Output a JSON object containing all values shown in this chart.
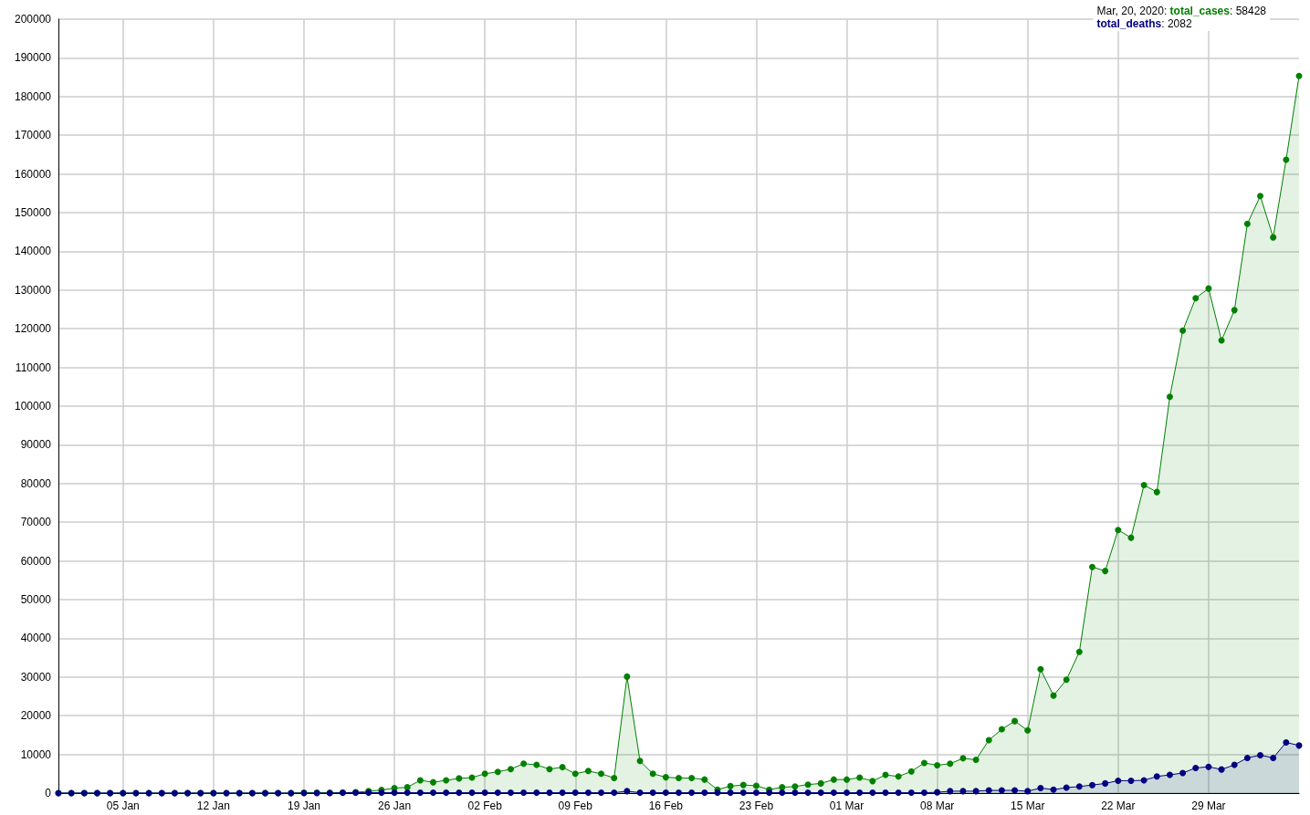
{
  "chart_data": {
    "type": "area",
    "x": [
      "2019-12-31",
      "2020-01-01",
      "2020-01-02",
      "2020-01-03",
      "2020-01-04",
      "2020-01-05",
      "2020-01-06",
      "2020-01-07",
      "2020-01-08",
      "2020-01-09",
      "2020-01-10",
      "2020-01-11",
      "2020-01-12",
      "2020-01-13",
      "2020-01-14",
      "2020-01-15",
      "2020-01-16",
      "2020-01-17",
      "2020-01-18",
      "2020-01-19",
      "2020-01-20",
      "2020-01-21",
      "2020-01-22",
      "2020-01-23",
      "2020-01-24",
      "2020-01-25",
      "2020-01-26",
      "2020-01-27",
      "2020-01-28",
      "2020-01-29",
      "2020-01-30",
      "2020-01-31",
      "2020-02-01",
      "2020-02-02",
      "2020-02-03",
      "2020-02-04",
      "2020-02-05",
      "2020-02-06",
      "2020-02-07",
      "2020-02-08",
      "2020-02-09",
      "2020-02-10",
      "2020-02-11",
      "2020-02-12",
      "2020-02-13",
      "2020-02-14",
      "2020-02-15",
      "2020-02-16",
      "2020-02-17",
      "2020-02-18",
      "2020-02-19",
      "2020-02-20",
      "2020-02-21",
      "2020-02-22",
      "2020-02-23",
      "2020-02-24",
      "2020-02-25",
      "2020-02-26",
      "2020-02-27",
      "2020-02-28",
      "2020-02-29",
      "2020-03-01",
      "2020-03-02",
      "2020-03-03",
      "2020-03-04",
      "2020-03-05",
      "2020-03-06",
      "2020-03-07",
      "2020-03-08",
      "2020-03-09",
      "2020-03-10",
      "2020-03-11",
      "2020-03-12",
      "2020-03-13",
      "2020-03-14",
      "2020-03-15",
      "2020-03-16",
      "2020-03-17",
      "2020-03-18",
      "2020-03-19",
      "2020-03-20",
      "2020-03-21",
      "2020-03-22",
      "2020-03-23",
      "2020-03-24",
      "2020-03-25",
      "2020-03-26",
      "2020-03-27",
      "2020-03-28",
      "2020-03-29",
      "2020-03-30",
      "2020-03-31",
      "2020-04-01",
      "2020-04-02",
      "2020-04-03",
      "2020-04-04",
      "2020-04-05"
    ],
    "series": [
      {
        "name": "total_cases",
        "color": "#008000",
        "values": [
          0,
          0,
          0,
          0,
          0,
          0,
          0,
          0,
          0,
          0,
          0,
          0,
          0,
          0,
          0,
          0,
          0,
          0,
          0,
          100,
          100,
          100,
          100,
          200,
          500,
          800,
          1300,
          1500,
          3300,
          2800,
          3300,
          3800,
          4000,
          5000,
          5500,
          6200,
          7600,
          7300,
          6200,
          6700,
          5000,
          5700,
          5000,
          3900,
          30100,
          8300,
          5000,
          4100,
          3900,
          3900,
          3500,
          900,
          1800,
          2100,
          1900,
          900,
          1500,
          1700,
          2200,
          2500,
          3500,
          3500,
          4000,
          3100,
          4700,
          4300,
          5600,
          7800,
          7200,
          7600,
          9000,
          8600,
          13700,
          16500,
          18600,
          16200,
          32000,
          25200,
          29300,
          36500,
          58428,
          57400,
          68000,
          66000,
          79600,
          77800,
          102400,
          119500,
          127900,
          130400,
          117000,
          124800,
          147100,
          154300,
          143600,
          163700,
          185300
        ]
      },
      {
        "name": "total_deaths",
        "color": "#000080",
        "values": [
          0,
          0,
          0,
          0,
          0,
          0,
          0,
          0,
          0,
          0,
          0,
          0,
          0,
          0,
          0,
          0,
          0,
          0,
          0,
          0,
          0,
          0,
          100,
          100,
          100,
          100,
          100,
          100,
          100,
          100,
          100,
          100,
          100,
          100,
          100,
          100,
          100,
          100,
          100,
          100,
          100,
          100,
          100,
          100,
          500,
          100,
          100,
          100,
          100,
          100,
          100,
          100,
          100,
          100,
          100,
          100,
          100,
          100,
          100,
          100,
          100,
          100,
          100,
          100,
          100,
          100,
          100,
          100,
          200,
          500,
          500,
          500,
          700,
          700,
          700,
          500,
          1300,
          900,
          1400,
          1700,
          2082,
          2500,
          3200,
          3200,
          3300,
          4300,
          4700,
          5200,
          6500,
          6800,
          6100,
          7300,
          9100,
          9800,
          9100,
          13100,
          12300
        ]
      }
    ],
    "xlim": [
      "2019-12-31",
      "2020-04-05"
    ],
    "xticks": [
      {
        "value": "2020-01-05",
        "label": "05 Jan"
      },
      {
        "value": "2020-01-12",
        "label": "12 Jan"
      },
      {
        "value": "2020-01-19",
        "label": "19 Jan"
      },
      {
        "value": "2020-01-26",
        "label": "26 Jan"
      },
      {
        "value": "2020-02-02",
        "label": "02 Feb"
      },
      {
        "value": "2020-02-09",
        "label": "09 Feb"
      },
      {
        "value": "2020-02-16",
        "label": "16 Feb"
      },
      {
        "value": "2020-02-23",
        "label": "23 Feb"
      },
      {
        "value": "2020-03-01",
        "label": "01 Mar"
      },
      {
        "value": "2020-03-08",
        "label": "08 Mar"
      },
      {
        "value": "2020-03-15",
        "label": "15 Mar"
      },
      {
        "value": "2020-03-22",
        "label": "22 Mar"
      },
      {
        "value": "2020-03-29",
        "label": "29 Mar"
      }
    ],
    "ylim": [
      0,
      200000
    ],
    "yticks": [
      0,
      10000,
      20000,
      30000,
      40000,
      50000,
      60000,
      70000,
      80000,
      90000,
      100000,
      110000,
      120000,
      130000,
      140000,
      150000,
      160000,
      170000,
      180000,
      190000,
      200000
    ],
    "annotations": [
      "Mar, 20, 2020:",
      ": 58428",
      ": 2082"
    ],
    "grid": true,
    "legend": "top right",
    "marker": "circle",
    "line_style": "solid"
  }
}
